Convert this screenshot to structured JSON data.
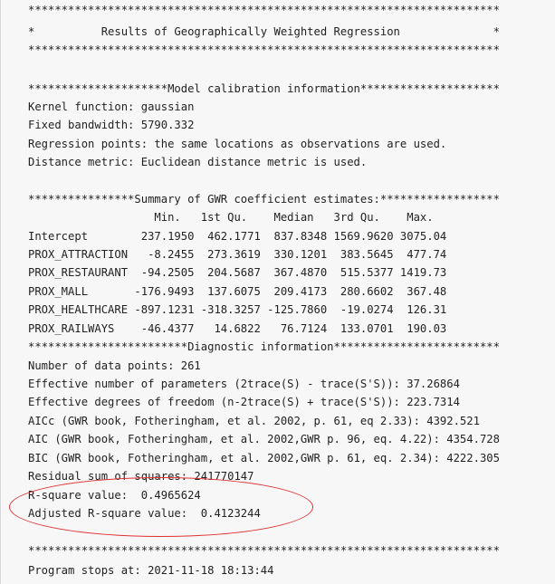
{
  "colors": {
    "background": "#f7f7f7",
    "text": "#222222",
    "highlight": "#e03131"
  },
  "header": {
    "stars_top": "***********************************************************************",
    "title_line": "*          Results of Geographically Weighted Regression              *",
    "stars_bottom": "***********************************************************************"
  },
  "calibration": {
    "heading": "*********************Model calibration information*********************",
    "kernel": "Kernel function: gaussian",
    "bandwidth": "Fixed bandwidth: 5790.332",
    "regression_points": "Regression points: the same locations as observations are used.",
    "distance_metric": "Distance metric: Euclidean distance metric is used."
  },
  "summary": {
    "heading": "****************Summary of GWR coefficient estimates:******************",
    "columns": "                   Min.   1st Qu.    Median   3rd Qu.    Max.",
    "rows": [
      "Intercept        237.1950  462.1771  837.8348 1569.9620 3075.04",
      "PROX_ATTRACTION   -8.2455  273.3619  330.1201  383.5645  477.74",
      "PROX_RESTAURANT  -94.2505  204.5687  367.4870  515.5377 1419.73",
      "PROX_MALL       -176.9493  137.6075  209.4173  280.6602  367.48",
      "PROX_HEALTHCARE -897.1231 -318.3257 -125.7860  -19.0274  126.31",
      "PROX_RAILWAYS    -46.4377   14.6822   76.7124  133.0701  190.03"
    ]
  },
  "diagnostics": {
    "heading": "************************Diagnostic information*************************",
    "data_points": "Number of data points: 261",
    "effective_params": "Effective number of parameters (2trace(S) - trace(S'S)): 37.26864",
    "effective_df": "Effective degrees of freedom (n-2trace(S) + trace(S'S)): 223.7314",
    "aicc": "AICc (GWR book, Fotheringham, et al. 2002, p. 61, eq 2.33): 4392.521",
    "aic": "AIC (GWR book, Fotheringham, et al. 2002,GWR p. 96, eq. 4.22): 4354.728",
    "bic": "BIC (GWR book, Fotheringham, et al. 2002,GWR p. 61, eq. 2.34): 4222.305",
    "rss": "Residual sum of squares: 241770147",
    "r_square": "R-square value:  0.4965624",
    "adj_r_square": "Adjusted R-square value:  0.4123244"
  },
  "footer": {
    "stars": "***********************************************************************",
    "program_stops": "Program stops at: 2021-11-18 18:13:44"
  }
}
